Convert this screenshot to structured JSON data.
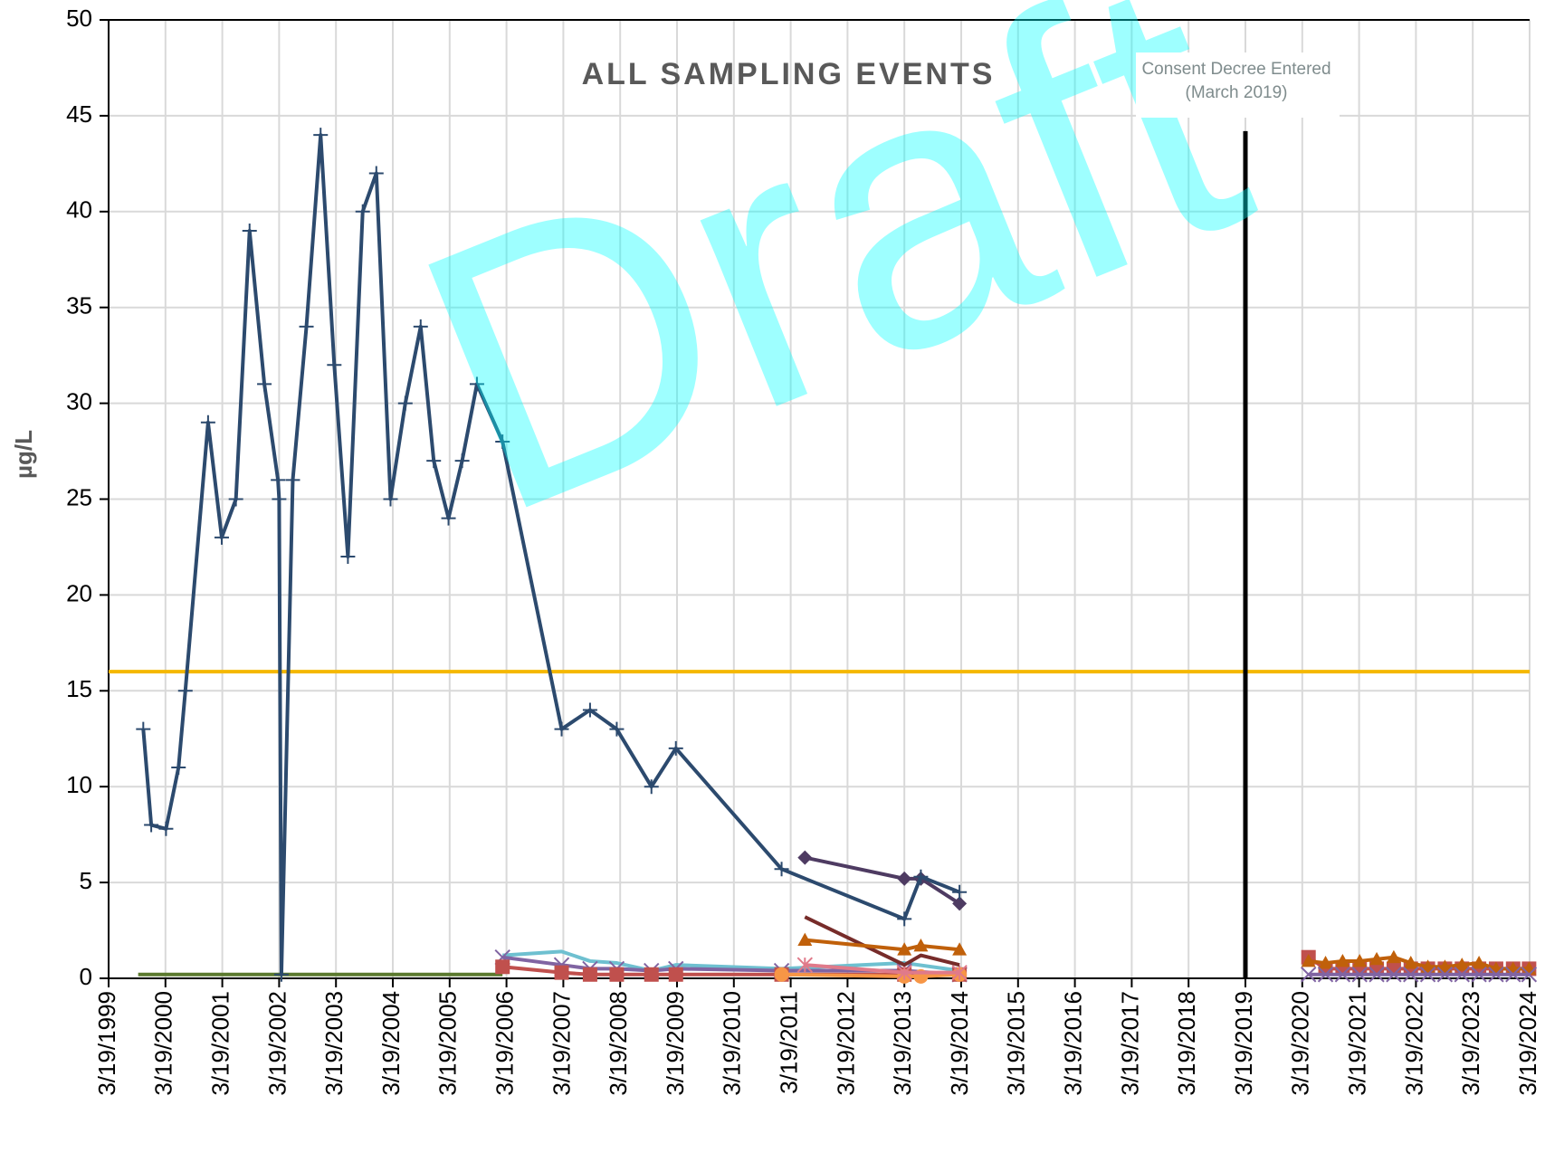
{
  "chart_data": {
    "type": "line",
    "title": "ALL SAMPLING EVENTS",
    "y_label": "µg/L",
    "watermark": "Draft",
    "annotations": [
      "Consent Decree Entered",
      "(March 2019)"
    ],
    "xlim": [
      1999.21,
      2024.21
    ],
    "xticks": [
      {
        "value": 1999.21,
        "label": "3/19/1999"
      },
      {
        "value": 2000.21,
        "label": "3/19/2000"
      },
      {
        "value": 2001.21,
        "label": "3/19/2001"
      },
      {
        "value": 2002.21,
        "label": "3/19/2002"
      },
      {
        "value": 2003.21,
        "label": "3/19/2003"
      },
      {
        "value": 2004.21,
        "label": "3/19/2004"
      },
      {
        "value": 2005.21,
        "label": "3/19/2005"
      },
      {
        "value": 2006.21,
        "label": "3/19/2006"
      },
      {
        "value": 2007.21,
        "label": "3/19/2007"
      },
      {
        "value": 2008.21,
        "label": "3/19/2008"
      },
      {
        "value": 2009.21,
        "label": "3/19/2009"
      },
      {
        "value": 2010.21,
        "label": "3/19/2010"
      },
      {
        "value": 2011.21,
        "label": "3/19/2011"
      },
      {
        "value": 2012.21,
        "label": "3/19/2012"
      },
      {
        "value": 2013.21,
        "label": "3/19/2013"
      },
      {
        "value": 2014.21,
        "label": "3/19/2014"
      },
      {
        "value": 2015.21,
        "label": "3/19/2015"
      },
      {
        "value": 2016.21,
        "label": "3/19/2016"
      },
      {
        "value": 2017.21,
        "label": "3/19/2017"
      },
      {
        "value": 2018.21,
        "label": "3/19/2018"
      },
      {
        "value": 2019.21,
        "label": "3/19/2019"
      },
      {
        "value": 2020.21,
        "label": "3/19/2020"
      },
      {
        "value": 2021.21,
        "label": "3/19/2021"
      },
      {
        "value": 2022.21,
        "label": "3/19/2022"
      },
      {
        "value": 2023.21,
        "label": "3/19/2023"
      },
      {
        "value": 2024.21,
        "label": "3/19/2024"
      }
    ],
    "ylim": [
      0,
      50
    ],
    "yticks": [
      0,
      5,
      10,
      15,
      20,
      25,
      30,
      35,
      40,
      45,
      50
    ],
    "grid": true,
    "reference_lines": [
      {
        "value": 16,
        "color": "#f5b800"
      }
    ],
    "vlines": [
      {
        "x": 2019.21,
        "top": 44.2,
        "color": "#000000"
      }
    ],
    "series": [
      {
        "color": "#5b7a2e",
        "marker": "none",
        "x": [
          1999.73,
          2006.14
        ],
        "values": [
          0.2,
          0.2
        ]
      },
      {
        "color": "#6ec0d0",
        "marker": "none",
        "x": [
          2006.14,
          2007.18,
          2007.68,
          2008.15,
          2008.76,
          2009.19,
          2011.05,
          2013.21,
          2014.18
        ],
        "values": [
          1.2,
          1.4,
          0.9,
          0.8,
          0.4,
          0.7,
          0.5,
          0.8,
          0.4
        ]
      },
      {
        "color": "#8064a2",
        "marker": "x",
        "x": [
          2006.14,
          2007.18,
          2007.68,
          2008.15,
          2008.76,
          2009.19,
          2011.05,
          2013.21,
          2014.18
        ],
        "values": [
          1.1,
          0.7,
          0.5,
          0.5,
          0.4,
          0.5,
          0.4,
          0.4,
          0.2
        ]
      },
      {
        "color": "#c0504d",
        "marker": "square",
        "x": [
          2006.14,
          2007.18,
          2007.68,
          2008.15,
          2008.76,
          2009.19,
          2011.05,
          2013.21,
          2014.18
        ],
        "values": [
          0.6,
          0.3,
          0.2,
          0.2,
          0.2,
          0.2,
          0.2,
          0.2,
          0.2
        ]
      },
      {
        "color": "#f79646",
        "marker": "circle",
        "x": [
          2011.05,
          2013.21,
          2013.5,
          2014.18
        ],
        "values": [
          0.2,
          0.1,
          0.1,
          0.2
        ]
      },
      {
        "color": "#e07a8a",
        "marker": "asterisk",
        "x": [
          2011.46,
          2013.21,
          2014.18
        ],
        "values": [
          0.7,
          0.3,
          0.3
        ]
      },
      {
        "color": "#772c2a",
        "marker": "none",
        "x": [
          2011.46,
          2013.21,
          2013.5,
          2014.18
        ],
        "values": [
          3.2,
          0.7,
          1.2,
          0.7
        ]
      },
      {
        "color": "#c0600a",
        "marker": "triangle",
        "x": [
          2011.46,
          2013.21,
          2013.5,
          2014.18
        ],
        "values": [
          2.0,
          1.5,
          1.7,
          1.5
        ]
      },
      {
        "color": "#4e3b62",
        "marker": "diamond",
        "x": [
          2011.46,
          2013.21,
          2013.5,
          2014.18
        ],
        "values": [
          6.3,
          5.2,
          5.2,
          3.9
        ]
      },
      {
        "color": "#c0504d",
        "marker": "square",
        "x": [
          2020.32,
          2020.62,
          2020.92,
          2021.22,
          2021.52,
          2021.82,
          2022.12,
          2022.42,
          2022.72,
          2023.02,
          2023.32,
          2023.62,
          2023.92,
          2024.2
        ],
        "values": [
          1.1,
          0.5,
          0.5,
          0.5,
          0.5,
          0.5,
          0.5,
          0.5,
          0.5,
          0.5,
          0.5,
          0.5,
          0.5,
          0.5
        ]
      },
      {
        "color": "#c0600a",
        "marker": "triangle",
        "x": [
          2020.32,
          2020.62,
          2020.92,
          2021.22,
          2021.52,
          2021.82,
          2022.12,
          2022.42,
          2022.72,
          2023.02,
          2023.32,
          2023.62,
          2023.92,
          2024.2
        ],
        "values": [
          0.9,
          0.8,
          0.9,
          0.9,
          1.0,
          1.1,
          0.8,
          0.6,
          0.6,
          0.7,
          0.8,
          0.5,
          0.5,
          0.5
        ]
      },
      {
        "color": "#8064a2",
        "marker": "x",
        "x": [
          2020.32,
          2020.62,
          2020.92,
          2021.22,
          2021.52,
          2021.82,
          2022.12,
          2022.42,
          2022.72,
          2023.02,
          2023.32,
          2023.62,
          2023.92,
          2024.2
        ],
        "values": [
          0.2,
          0.2,
          0.2,
          0.2,
          0.2,
          0.2,
          0.2,
          0.2,
          0.2,
          0.2,
          0.2,
          0.2,
          0.2,
          0.2
        ]
      },
      {
        "color": "#2c4a6e",
        "marker": "plus",
        "x": [
          1999.82,
          1999.96,
          2000.22,
          2000.44,
          2000.56,
          2000.96,
          2001.2,
          2001.45,
          2001.69,
          2001.95,
          2002.19,
          2002.21,
          2002.25,
          2002.45,
          2002.69,
          2002.94,
          2003.18,
          2003.42,
          2003.68,
          2003.92,
          2004.17,
          2004.43,
          2004.7,
          2004.93,
          2005.19,
          2005.43,
          2005.69,
          2006.14,
          2007.18,
          2007.68,
          2008.15,
          2008.76,
          2009.19,
          2011.05,
          2013.21,
          2013.5,
          2014.18
        ],
        "values": [
          13,
          8,
          7.8,
          11,
          15,
          29,
          23,
          25,
          39,
          31,
          26,
          25,
          0.2,
          26,
          34,
          44,
          32,
          22,
          40,
          42,
          25,
          30,
          34,
          27,
          24,
          27,
          31,
          28,
          13,
          14,
          13,
          10,
          12,
          5.7,
          3.1,
          5.3,
          4.5
        ]
      }
    ]
  }
}
